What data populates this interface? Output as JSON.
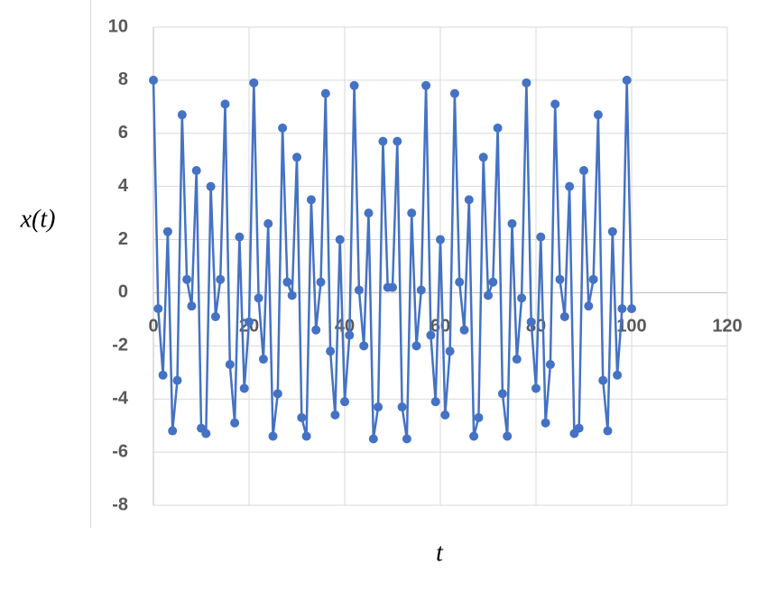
{
  "chart_data": {
    "type": "line",
    "x_label": "t",
    "y_label": "x(t)",
    "x": [
      0,
      1,
      2,
      3,
      4,
      5,
      6,
      7,
      8,
      9,
      10,
      11,
      12,
      13,
      14,
      15,
      16,
      17,
      18,
      19,
      20,
      21,
      22,
      23,
      24,
      25,
      26,
      27,
      28,
      29,
      30,
      31,
      32,
      33,
      34,
      35,
      36,
      37,
      38,
      39,
      40,
      41,
      42,
      43,
      44,
      45,
      46,
      47,
      48,
      49,
      50,
      51,
      52,
      53,
      54,
      55,
      56,
      57,
      58,
      59,
      60,
      61,
      62,
      63,
      64,
      65,
      66,
      67,
      68,
      69,
      70,
      71,
      72,
      73,
      74,
      75,
      76,
      77,
      78,
      79,
      80,
      81,
      82,
      83,
      84,
      85,
      86,
      87,
      88,
      89,
      90,
      91,
      92,
      93,
      94,
      95,
      96,
      97,
      98,
      99,
      100
    ],
    "series": [
      {
        "color": "#4472c4",
        "values": [
          8,
          -0.6,
          -3.1,
          2.3,
          -5.2,
          -3.3,
          6.7,
          0.5,
          -0.5,
          4.6,
          -5.1,
          -5.3,
          4.0,
          -0.9,
          0.5,
          7.1,
          -2.7,
          -4.9,
          2.1,
          -3.6,
          -1.1,
          7.9,
          -0.2,
          -2.5,
          2.6,
          -5.4,
          -3.8,
          6.2,
          0.4,
          -0.1,
          5.1,
          -4.7,
          -5.4,
          3.5,
          -1.4,
          0.4,
          7.5,
          -2.2,
          -4.6,
          2.0,
          -4.1,
          -1.6,
          7.8,
          0.1,
          -2.0,
          3.0,
          -5.5,
          -4.3,
          5.7,
          0.2,
          0.2,
          5.7,
          -4.3,
          -5.5,
          3.0,
          -2.0,
          0.1,
          7.8,
          -1.6,
          -4.1,
          2.0,
          -4.6,
          -2.2,
          7.5,
          0.4,
          -1.4,
          3.5,
          -5.4,
          -4.7,
          5.1,
          -0.1,
          0.4,
          6.2,
          -3.8,
          -5.4,
          2.6,
          -2.5,
          -0.2,
          7.9,
          -1.1,
          -3.6,
          2.1,
          -4.9,
          -2.7,
          7.1,
          0.5,
          -0.9,
          4.0,
          -5.3,
          -5.1,
          4.6,
          -0.5,
          0.5,
          6.7,
          -3.3,
          -5.2,
          2.3,
          -3.1,
          -0.6,
          8,
          -0.6
        ]
      }
    ],
    "xlim": [
      0,
      120
    ],
    "xticks": [
      0,
      20,
      40,
      60,
      80,
      100,
      120
    ],
    "ylim": [
      -8,
      10
    ],
    "yticks": [
      -8,
      -6,
      -4,
      -2,
      0,
      2,
      4,
      6,
      8,
      10
    ],
    "grid": true
  }
}
